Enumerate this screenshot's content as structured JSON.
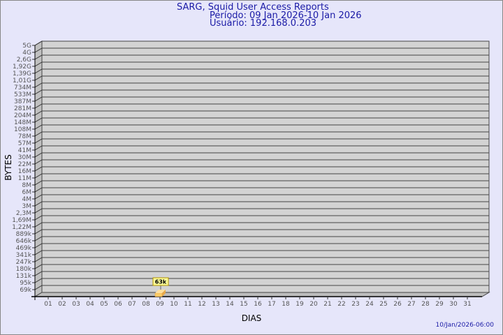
{
  "chart_data": {
    "type": "bar",
    "title": "SARG, Squid User Access Reports",
    "subtitle_lines": [
      "Período: 09 Jan 2026-10 Jan 2026",
      "Usuário: 192.168.0.203"
    ],
    "xlabel": "DIAS",
    "ylabel": "BYTES",
    "y_scale": "log",
    "y_tick_labels": [
      "5G",
      "4G",
      "2,6G",
      "1,92G",
      "1,39G",
      "1,01G",
      "734M",
      "533M",
      "387M",
      "281M",
      "204M",
      "148M",
      "108M",
      "78M",
      "57M",
      "41M",
      "30M",
      "22M",
      "16M",
      "11M",
      "8M",
      "6M",
      "4M",
      "3M",
      "2,3M",
      "1,69M",
      "1,22M",
      "889k",
      "646k",
      "469k",
      "341k",
      "247k",
      "180k",
      "131k",
      "95k",
      "69k"
    ],
    "categories": [
      "01",
      "02",
      "03",
      "04",
      "05",
      "06",
      "07",
      "08",
      "09",
      "10",
      "11",
      "12",
      "13",
      "14",
      "15",
      "16",
      "17",
      "18",
      "19",
      "20",
      "21",
      "22",
      "23",
      "24",
      "25",
      "26",
      "27",
      "28",
      "29",
      "30",
      "31"
    ],
    "bars": [
      {
        "category": "09",
        "value_label": "63k",
        "value": 63000
      }
    ],
    "grid": true,
    "colors": {
      "background": "#e6e6fa",
      "plot": "#d3d3d3",
      "bar": "#ffcc66",
      "text": "#1a1aa6"
    }
  },
  "footer": {
    "timestamp": "10/Jan/2026-06:00"
  }
}
